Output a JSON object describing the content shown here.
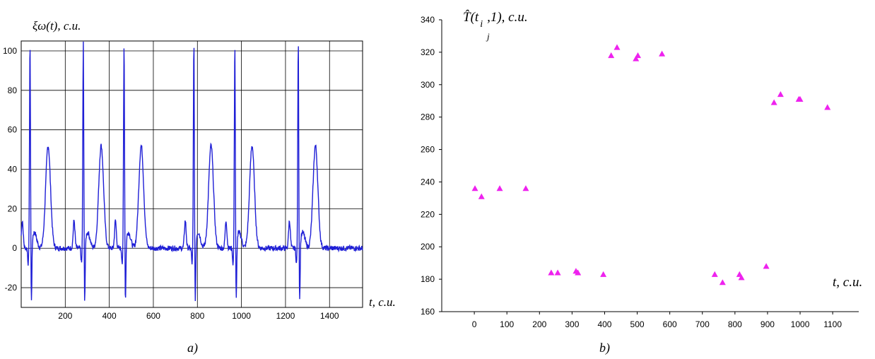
{
  "chart_data": [
    {
      "type": "line",
      "title": "",
      "ylabel": "ξω(t), с.и.",
      "xlabel": "t, с.и.",
      "caption": "a)",
      "xlim": [
        0,
        1550
      ],
      "ylim": [
        -30,
        105
      ],
      "x_ticks": [
        200,
        400,
        600,
        800,
        1000,
        1200,
        1400
      ],
      "y_ticks": [
        -20,
        0,
        20,
        40,
        60,
        80,
        100
      ],
      "grid": true,
      "color": "#1f1fd6",
      "beats": [
        {
          "p": 5,
          "r": 40,
          "t": 122
        },
        {
          "p": 240,
          "r": 282,
          "t": 363
        },
        {
          "p": 428,
          "r": 467,
          "t": 545
        },
        {
          "p": 745,
          "r": 784,
          "t": 862
        },
        {
          "p": 930,
          "r": 970,
          "t": 1048
        },
        {
          "p": 1218,
          "r": 1258,
          "t": 1336
        }
      ],
      "r_peak": 105,
      "s_trough": -29,
      "t_peak": 58,
      "p_peak": 14
    },
    {
      "type": "scatter",
      "title": "",
      "ylabel_main": "T̂(t",
      "ylabel_sub": "i",
      "ylabel_subsub": "j",
      "ylabel_tail": ",1), с.и.",
      "xlabel": "t, с.и.",
      "caption": "b)",
      "xlim": [
        -100,
        1180
      ],
      "ylim": [
        160,
        340
      ],
      "x_ticks": [
        0,
        100,
        200,
        300,
        400,
        500,
        600,
        700,
        800,
        900,
        1000,
        1100
      ],
      "y_ticks": [
        160,
        180,
        200,
        220,
        240,
        260,
        280,
        300,
        320,
        340
      ],
      "grid": false,
      "color": "#ee22ee",
      "points": [
        {
          "x": 2,
          "y": 236
        },
        {
          "x": 22,
          "y": 231
        },
        {
          "x": 78,
          "y": 236
        },
        {
          "x": 158,
          "y": 236
        },
        {
          "x": 236,
          "y": 184
        },
        {
          "x": 256,
          "y": 184
        },
        {
          "x": 312,
          "y": 185
        },
        {
          "x": 318,
          "y": 184
        },
        {
          "x": 396,
          "y": 183
        },
        {
          "x": 420,
          "y": 318
        },
        {
          "x": 438,
          "y": 323
        },
        {
          "x": 496,
          "y": 316
        },
        {
          "x": 502,
          "y": 318
        },
        {
          "x": 576,
          "y": 319
        },
        {
          "x": 738,
          "y": 183
        },
        {
          "x": 762,
          "y": 178
        },
        {
          "x": 814,
          "y": 183
        },
        {
          "x": 820,
          "y": 181
        },
        {
          "x": 896,
          "y": 188
        },
        {
          "x": 920,
          "y": 289
        },
        {
          "x": 940,
          "y": 294
        },
        {
          "x": 996,
          "y": 291
        },
        {
          "x": 1000,
          "y": 291
        },
        {
          "x": 1084,
          "y": 286
        }
      ]
    }
  ]
}
